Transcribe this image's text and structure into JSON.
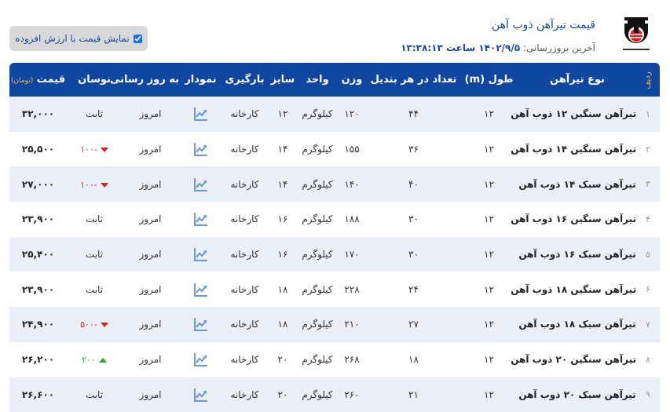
{
  "header": {
    "title": "قیمت تیرآهن ذوب آهن",
    "updated_label": "آخرین بروزرسانی:",
    "updated_value": "۱۴۰۲/۹/۵ ساعت ۱۳:۳۸:۱۳",
    "logo_text": "شرکت سهامی ذوب آهن اصفهان"
  },
  "vat_toggle": {
    "label": "نمایش قیمت با ارزش افزوده",
    "checked": true
  },
  "table": {
    "columns": {
      "radif": "ردیف",
      "type": "نوع تیرآهن",
      "length": "طول (m)",
      "count": "تعداد در هر بندیل",
      "weight": "وزن",
      "unit": "واحد",
      "size": "سایز",
      "loading": "بارگیری",
      "chart": "نمودار",
      "update": "به روز رسانی",
      "fluct": "نوسان",
      "price": "قیمت",
      "price_unit": "(تومان)"
    },
    "colors": {
      "header_bg": "#0f47a0",
      "down": "#e02020",
      "up": "#20b030",
      "row_alt": "#eaeff8"
    },
    "rows": [
      {
        "idx": "۱",
        "type": "تیرآهن سنگین ۱۲ ذوب آهن",
        "length": "۱۲",
        "count": "۴۴",
        "weight": "۱۲۰",
        "unit": "کیلوگرم",
        "size": "۱۲",
        "loading": "کارخانه",
        "update": "امروز",
        "fluct": "ثابت",
        "dir": "flat",
        "price": "۳۲,۰۰۰"
      },
      {
        "idx": "۲",
        "type": "تیرآهن سنگین ۱۴ ذوب آهن",
        "length": "۱۲",
        "count": "۳۶",
        "weight": "۱۵۵",
        "unit": "کیلوگرم",
        "size": "۱۴",
        "loading": "کارخانه",
        "update": "امروز",
        "fluct": "-۱۰۰",
        "dir": "down",
        "price": "۲۵,۵۰۰"
      },
      {
        "idx": "۳",
        "type": "تیرآهن سبک ۱۴ ذوب آهن",
        "length": "۱۲",
        "count": "۴۰",
        "weight": "۱۴۰",
        "unit": "کیلوگرم",
        "size": "۱۴",
        "loading": "کارخانه",
        "update": "امروز",
        "fluct": "-۱۰۰",
        "dir": "down",
        "price": "۲۷,۰۰۰"
      },
      {
        "idx": "۴",
        "type": "تیرآهن سنگین ۱۶ ذوب آهن",
        "length": "۱۲",
        "count": "۳۰",
        "weight": "۱۸۸",
        "unit": "کیلوگرم",
        "size": "۱۶",
        "loading": "کارخانه",
        "update": "امروز",
        "fluct": "ثابت",
        "dir": "flat",
        "price": "۲۳,۹۰۰"
      },
      {
        "idx": "۵",
        "type": "تیرآهن سبک ۱۶ ذوب آهن",
        "length": "۱۲",
        "count": "۳۰",
        "weight": "۱۷۰",
        "unit": "کیلوگرم",
        "size": "۱۶",
        "loading": "کارخانه",
        "update": "امروز",
        "fluct": "ثابت",
        "dir": "flat",
        "price": "۲۵,۴۰۰"
      },
      {
        "idx": "۶",
        "type": "تیرآهن سنگین ۱۸ ذوب آهن",
        "length": "۱۲",
        "count": "۲۴",
        "weight": "۲۲۸",
        "unit": "کیلوگرم",
        "size": "۱۸",
        "loading": "کارخانه",
        "update": "امروز",
        "fluct": "ثابت",
        "dir": "flat",
        "price": "۲۳,۹۰۰"
      },
      {
        "idx": "۷",
        "type": "تیرآهن سبک ۱۸ ذوب آهن",
        "length": "۱۲",
        "count": "۲۷",
        "weight": "۲۱۰",
        "unit": "کیلوگرم",
        "size": "۱۸",
        "loading": "کارخانه",
        "update": "امروز",
        "fluct": "-۵۰۰",
        "dir": "down",
        "price": "۲۴,۹۰۰"
      },
      {
        "idx": "۸",
        "type": "تیرآهن سنگین ۲۰ ذوب آهن",
        "length": "۱۲",
        "count": "۱۸",
        "weight": "۲۶۸",
        "unit": "کیلوگرم",
        "size": "۲۰",
        "loading": "کارخانه",
        "update": "امروز",
        "fluct": "۲۰۰",
        "dir": "up",
        "price": "۲۶,۲۰۰"
      },
      {
        "idx": "۹",
        "type": "تیرآهن سبک ۲۰ ذوب آهن",
        "length": "۱۲",
        "count": "۲۱",
        "weight": "۲۶۰",
        "unit": "کیلوگرم",
        "size": "۲۰",
        "loading": "کارخانه",
        "update": "امروز",
        "fluct": "ثابت",
        "dir": "flat",
        "price": "۲۶,۶۰۰"
      }
    ]
  }
}
